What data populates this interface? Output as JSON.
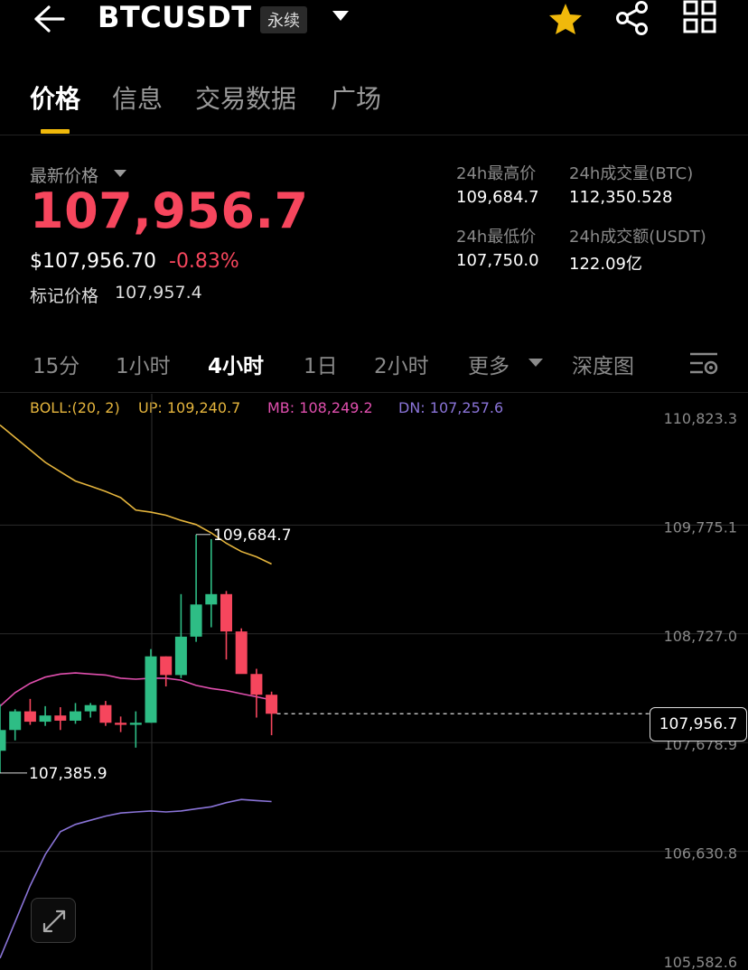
{
  "header": {
    "symbol": "BTCUSDT",
    "contract_type": "永续",
    "icons": [
      "back-arrow-icon",
      "chevron-down-icon",
      "star-icon",
      "share-icon",
      "grid-icon"
    ],
    "star_color": "#f0b90b"
  },
  "tabs": [
    {
      "label": "价格",
      "active": true
    },
    {
      "label": "信息",
      "active": false
    },
    {
      "label": "交易数据",
      "active": false
    },
    {
      "label": "广场",
      "active": false
    }
  ],
  "ticker": {
    "latest_label": "最新价格",
    "last_price": "107,956.7",
    "usd_price": "$107,956.70",
    "change_pct": "-0.83%",
    "mark_label": "标记价格",
    "mark_price": "107,957.4",
    "high_label": "24h最高价",
    "high": "109,684.7",
    "low_label": "24h最低价",
    "low": "107,750.0",
    "vol_btc_label": "24h成交量(BTC)",
    "vol_btc": "112,350.528",
    "vol_usdt_label": "24h成交额(USDT)",
    "vol_usdt": "122.09亿",
    "down_color": "#f6465d",
    "up_color": "#2ebd85"
  },
  "intervals": [
    {
      "label": "15分",
      "active": false
    },
    {
      "label": "1小时",
      "active": false
    },
    {
      "label": "4小时",
      "active": true
    },
    {
      "label": "1日",
      "active": false
    },
    {
      "label": "2小时",
      "active": false
    },
    {
      "label": "更多",
      "active": false
    },
    {
      "label": "深度图",
      "active": false
    }
  ],
  "boll": {
    "label": "BOLL:(20, 2)",
    "up": "UP: 109,240.7",
    "mb": "MB: 108,249.2",
    "dn": "DN: 107,257.6",
    "up_color": "#e5b53d",
    "mb_color": "#e04fae",
    "dn_color": "#8a74d8"
  },
  "chart_data": {
    "type": "candlestick",
    "y_ticks": [
      "110,823.3",
      "109,775.1",
      "108,727.0",
      "107,678.9",
      "106,630.8",
      "105,582.6"
    ],
    "ylim": [
      105582.6,
      110823.3
    ],
    "max_label": "109,684.7",
    "min_label": "107,385.9",
    "current_price_label": "107,956.7",
    "candles": [
      {
        "o": 107600,
        "h": 108050,
        "l": 107385.9,
        "c": 107800
      },
      {
        "o": 107800,
        "h": 108000,
        "l": 107700,
        "c": 107980
      },
      {
        "o": 107980,
        "h": 108100,
        "l": 107850,
        "c": 107880
      },
      {
        "o": 107880,
        "h": 108030,
        "l": 107840,
        "c": 107940
      },
      {
        "o": 107940,
        "h": 108020,
        "l": 107800,
        "c": 107890
      },
      {
        "o": 107890,
        "h": 108060,
        "l": 107860,
        "c": 107980
      },
      {
        "o": 107980,
        "h": 108060,
        "l": 107920,
        "c": 108040
      },
      {
        "o": 108040,
        "h": 108080,
        "l": 107840,
        "c": 107870
      },
      {
        "o": 107870,
        "h": 107930,
        "l": 107780,
        "c": 107850
      },
      {
        "o": 107850,
        "h": 107980,
        "l": 107630,
        "c": 107870
      },
      {
        "o": 107870,
        "h": 108580,
        "l": 107870,
        "c": 108510
      },
      {
        "o": 108510,
        "h": 108510,
        "l": 108220,
        "c": 108330
      },
      {
        "o": 108330,
        "h": 109110,
        "l": 108300,
        "c": 108700
      },
      {
        "o": 108700,
        "h": 109684.7,
        "l": 108650,
        "c": 109010
      },
      {
        "o": 109010,
        "h": 109640,
        "l": 108790,
        "c": 109110
      },
      {
        "o": 109110,
        "h": 109140,
        "l": 108480,
        "c": 108750
      },
      {
        "o": 108750,
        "h": 108780,
        "l": 108380,
        "c": 108340
      },
      {
        "o": 108340,
        "h": 108390,
        "l": 107920,
        "c": 108140
      },
      {
        "o": 108140,
        "h": 108170,
        "l": 107750,
        "c": 107956.7
      }
    ],
    "boll_up": [
      110740,
      110620,
      110500,
      110380,
      110290,
      110200,
      110150,
      110100,
      110040,
      109920,
      109900,
      109870,
      109820,
      109780,
      109700,
      109600,
      109520,
      109470,
      109400
    ],
    "boll_mb": [
      108030,
      108160,
      108250,
      108310,
      108340,
      108350,
      108340,
      108330,
      108300,
      108290,
      108300,
      108300,
      108280,
      108230,
      108200,
      108180,
      108150,
      108120,
      108090
    ],
    "boll_dn": [
      105600,
      105950,
      106300,
      106600,
      106820,
      106890,
      106930,
      106970,
      107000,
      107010,
      107020,
      107010,
      107020,
      107040,
      107060,
      107100,
      107130,
      107120,
      107110
    ],
    "grid": true
  }
}
